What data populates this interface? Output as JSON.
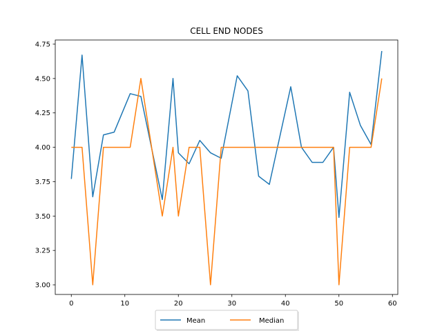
{
  "chart_data": {
    "type": "line",
    "title": "CELL END NODES",
    "xlabel": "",
    "ylabel": "",
    "xlim": [
      -3,
      61
    ],
    "ylim": [
      2.93,
      4.78
    ],
    "x_ticks": [
      "0",
      "10",
      "20",
      "30",
      "40",
      "50",
      "60"
    ],
    "y_ticks": [
      "3.00",
      "3.25",
      "3.50",
      "3.75",
      "4.00",
      "4.25",
      "4.50",
      "4.75"
    ],
    "grid": false,
    "legend_position": "bottom-center",
    "series": [
      {
        "name": "Mean",
        "color": "#1f77b4",
        "x": [
          0,
          2,
          4,
          6,
          8,
          11,
          13,
          17,
          19,
          20,
          22,
          24,
          26,
          28,
          31,
          33,
          35,
          37,
          41,
          43,
          45,
          47,
          49,
          50,
          52,
          54,
          56,
          58
        ],
        "y": [
          3.77,
          4.67,
          3.64,
          4.09,
          4.11,
          4.39,
          4.37,
          3.62,
          4.5,
          3.96,
          3.88,
          4.05,
          3.96,
          3.92,
          4.52,
          4.41,
          3.79,
          3.73,
          4.44,
          4.0,
          3.89,
          3.89,
          4.0,
          3.49,
          4.4,
          4.16,
          4.02,
          4.7
        ]
      },
      {
        "name": "Median",
        "color": "#ff7f0e",
        "x": [
          0,
          2,
          4,
          6,
          8,
          11,
          13,
          17,
          19,
          20,
          22,
          24,
          26,
          28,
          31,
          33,
          35,
          37,
          41,
          43,
          45,
          47,
          49,
          50,
          52,
          54,
          56,
          58
        ],
        "y": [
          4.0,
          4.0,
          3.0,
          4.0,
          4.0,
          4.0,
          4.5,
          3.5,
          4.0,
          3.5,
          4.0,
          4.0,
          3.0,
          4.0,
          4.0,
          4.0,
          4.0,
          4.0,
          4.0,
          4.0,
          4.0,
          4.0,
          4.0,
          3.0,
          4.0,
          4.0,
          4.0,
          4.5
        ]
      }
    ]
  }
}
